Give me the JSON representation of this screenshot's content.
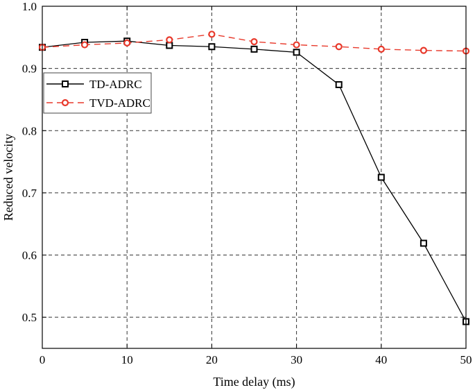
{
  "chart_data": {
    "type": "line",
    "xlabel": "Time delay (ms)",
    "ylabel": "Reduced velocity",
    "xlim": [
      0,
      50
    ],
    "ylim": [
      0.45,
      1.0
    ],
    "xticks": [
      0,
      10,
      20,
      30,
      40,
      50
    ],
    "yticks": [
      0.5,
      0.6,
      0.7,
      0.8,
      0.9,
      1.0
    ],
    "xtick_labels": [
      "0",
      "10",
      "20",
      "30",
      "40",
      "50"
    ],
    "ytick_labels": [
      "0.5",
      "0.6",
      "0.7",
      "0.8",
      "0.9",
      "1.0"
    ],
    "grid": true,
    "legend_position": "upper-left",
    "series": [
      {
        "name": "TD-ADRC",
        "color": "#000000",
        "marker": "square",
        "line_style": "solid",
        "x": [
          0,
          5,
          10,
          15,
          20,
          25,
          30,
          35,
          40,
          45,
          50
        ],
        "y": [
          0.934,
          0.942,
          0.944,
          0.937,
          0.935,
          0.931,
          0.926,
          0.874,
          0.725,
          0.619,
          0.493
        ]
      },
      {
        "name": "TVD-ADRC",
        "color": "#e8392b",
        "marker": "circle",
        "line_style": "dashed",
        "x": [
          0,
          5,
          10,
          15,
          20,
          25,
          30,
          35,
          40,
          45,
          50
        ],
        "y": [
          0.934,
          0.938,
          0.941,
          0.946,
          0.955,
          0.943,
          0.938,
          0.935,
          0.931,
          0.929,
          0.928
        ]
      }
    ]
  }
}
